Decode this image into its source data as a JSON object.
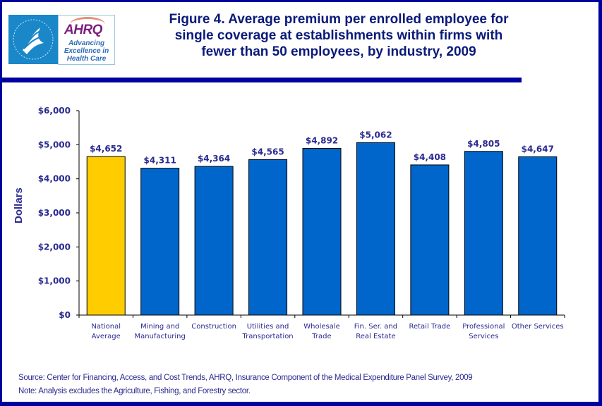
{
  "logo": {
    "hhs_alt": "Department of Health & Human Services USA seal",
    "ahrq_name": "AHRQ",
    "ahrq_tagline_lines": [
      "Advancing",
      "Excellence in",
      "Health Care"
    ]
  },
  "colors": {
    "frame": "#0000A0",
    "title_text": "#0a1a7a",
    "axis_text": "#2a2a90",
    "bar_highlight": "#FFCC00",
    "bar_default": "#0066CC"
  },
  "footer": {
    "source": "Source: Center for Financing, Access, and Cost Trends, AHRQ, Insurance Component of the Medical Expenditure Panel Survey, 2009",
    "note": "Note: Analysis excludes the Agriculture, Fishing, and Forestry sector."
  },
  "chart_data": {
    "type": "bar",
    "title": "Figure 4. Average premium per enrolled employee for single coverage at establishments within firms with fewer than 50 employees, by industry, 2009",
    "title_lines": [
      "Figure 4. Average premium per enrolled employee for",
      "single coverage at establishments within firms with",
      "fewer than 50 employees, by industry, 2009"
    ],
    "xlabel": "",
    "ylabel": "Dollars",
    "ylim": [
      0,
      6000
    ],
    "yticks": [
      0,
      1000,
      2000,
      3000,
      4000,
      5000,
      6000
    ],
    "ytick_labels": [
      "$0",
      "$1,000",
      "$2,000",
      "$3,000",
      "$4,000",
      "$5,000",
      "$6,000"
    ],
    "grid": false,
    "legend": "none",
    "categories": [
      [
        "National",
        "Average"
      ],
      [
        "Mining and",
        "Manufacturing"
      ],
      [
        "Construction"
      ],
      [
        "Utilities and",
        "Transportation"
      ],
      [
        "Wholesale",
        "Trade"
      ],
      [
        "Fin. Ser. and",
        "Real Estate"
      ],
      [
        "Retail Trade"
      ],
      [
        "Professional",
        "Services"
      ],
      [
        "Other Services"
      ]
    ],
    "values": [
      4652,
      4311,
      4364,
      4565,
      4892,
      5062,
      4408,
      4805,
      4647
    ],
    "value_labels": [
      "$4,652",
      "$4,311",
      "$4,364",
      "$4,565",
      "$4,892",
      "$5,062",
      "$4,408",
      "$4,805",
      "$4,647"
    ],
    "highlight_index": 0
  }
}
